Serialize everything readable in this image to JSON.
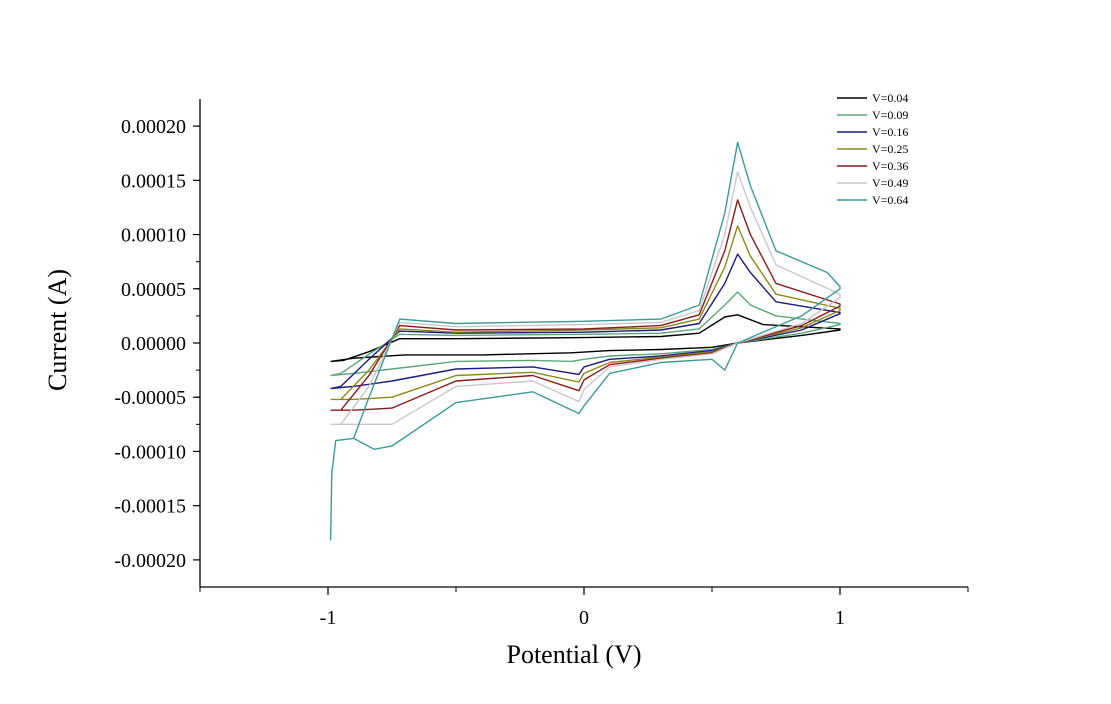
{
  "chart_data": {
    "type": "line",
    "title": "",
    "xlabel": "Potential (V)",
    "ylabel": "Current (A)",
    "xlim": [
      -1.5,
      1.5
    ],
    "ylim": [
      -0.000225,
      0.000225
    ],
    "x_ticks": [
      {
        "value": -1,
        "label": "-1"
      },
      {
        "value": 0,
        "label": "0"
      },
      {
        "value": 1,
        "label": "1"
      }
    ],
    "y_ticks": [
      {
        "value": 0.0002,
        "label": "0.00020"
      },
      {
        "value": 0.00015,
        "label": "0.00015"
      },
      {
        "value": 0.0001,
        "label": "0.00010"
      },
      {
        "value": 5e-05,
        "label": "0.00005"
      },
      {
        "value": 0.0,
        "label": "0.00000"
      },
      {
        "value": -5e-05,
        "label": "-0.00005"
      },
      {
        "value": -0.0001,
        "label": "-0.00010"
      },
      {
        "value": -0.00015,
        "label": "-0.00015"
      },
      {
        "value": -0.0002,
        "label": "-0.00020"
      }
    ],
    "grid": false,
    "legend_position": "top-right",
    "series": [
      {
        "name": "V=0.04",
        "color": "#000000",
        "points": [
          [
            -0.99,
            -1.7e-05
          ],
          [
            -0.94,
            -1.6e-05
          ],
          [
            -0.84,
            -8e-06
          ],
          [
            -0.72,
            4e-06
          ],
          [
            -0.5,
            4e-06
          ],
          [
            0.0,
            5e-06
          ],
          [
            0.3,
            6e-06
          ],
          [
            0.45,
            9e-06
          ],
          [
            0.55,
            2.4e-05
          ],
          [
            0.6,
            2.6e-05
          ],
          [
            0.7,
            1.7e-05
          ],
          [
            1.0,
            1.3e-05
          ],
          [
            1.0,
            1.2e-05
          ],
          [
            0.85,
            7e-06
          ],
          [
            0.6,
            0.0
          ],
          [
            0.5,
            -4e-06
          ],
          [
            0.3,
            -6e-06
          ],
          [
            0.1,
            -7e-06
          ],
          [
            -0.05,
            -9e-06
          ],
          [
            -0.4,
            -1.1e-05
          ],
          [
            -0.7,
            -1.1e-05
          ],
          [
            -0.9,
            -1.4e-05
          ],
          [
            -0.99,
            -1.7e-05
          ]
        ]
      },
      {
        "name": "V=0.09",
        "color": "#5aa779",
        "points": [
          [
            -0.99,
            -3e-05
          ],
          [
            -0.95,
            -2.8e-05
          ],
          [
            -0.85,
            -1.2e-05
          ],
          [
            -0.72,
            8e-06
          ],
          [
            -0.5,
            7e-06
          ],
          [
            0.0,
            8e-06
          ],
          [
            0.3,
            9e-06
          ],
          [
            0.45,
            1.3e-05
          ],
          [
            0.55,
            3.5e-05
          ],
          [
            0.6,
            4.7e-05
          ],
          [
            0.65,
            3.5e-05
          ],
          [
            0.75,
            2.5e-05
          ],
          [
            1.0,
            1.8e-05
          ],
          [
            1.0,
            1.7e-05
          ],
          [
            0.85,
            9e-06
          ],
          [
            0.6,
            0.0
          ],
          [
            0.5,
            -6e-06
          ],
          [
            0.3,
            -1e-05
          ],
          [
            0.1,
            -1.2e-05
          ],
          [
            0.0,
            -1.5e-05
          ],
          [
            -0.05,
            -1.7e-05
          ],
          [
            -0.2,
            -1.6e-05
          ],
          [
            -0.5,
            -1.7e-05
          ],
          [
            -0.75,
            -2.4e-05
          ],
          [
            -0.9,
            -2.8e-05
          ],
          [
            -0.99,
            -3e-05
          ]
        ]
      },
      {
        "name": "V=0.16",
        "color": "#1a1a80",
        "points": [
          [
            -0.99,
            -4.2e-05
          ],
          [
            -0.95,
            -4e-05
          ],
          [
            -0.84,
            -1.5e-05
          ],
          [
            -0.72,
            1.1e-05
          ],
          [
            -0.5,
            9e-06
          ],
          [
            0.0,
            1e-05
          ],
          [
            0.3,
            1.2e-05
          ],
          [
            0.45,
            1.8e-05
          ],
          [
            0.55,
            5.5e-05
          ],
          [
            0.6,
            8.2e-05
          ],
          [
            0.65,
            6.5e-05
          ],
          [
            0.75,
            3.8e-05
          ],
          [
            1.0,
            2.8e-05
          ],
          [
            1.0,
            2.7e-05
          ],
          [
            0.85,
            1.2e-05
          ],
          [
            0.6,
            0.0
          ],
          [
            0.5,
            -7e-06
          ],
          [
            0.3,
            -1.2e-05
          ],
          [
            0.1,
            -1.5e-05
          ],
          [
            0.0,
            -2.2e-05
          ],
          [
            -0.02,
            -2.9e-05
          ],
          [
            -0.2,
            -2.2e-05
          ],
          [
            -0.5,
            -2.4e-05
          ],
          [
            -0.75,
            -3.5e-05
          ],
          [
            -0.9,
            -4e-05
          ],
          [
            -0.99,
            -4.2e-05
          ]
        ]
      },
      {
        "name": "V=0.25",
        "color": "#8a8a1a",
        "points": [
          [
            -0.99,
            -5.2e-05
          ],
          [
            -0.95,
            -5.2e-05
          ],
          [
            -0.84,
            -2.5e-05
          ],
          [
            -0.72,
            1.3e-05
          ],
          [
            -0.5,
            1e-05
          ],
          [
            0.0,
            1.2e-05
          ],
          [
            0.3,
            1.4e-05
          ],
          [
            0.45,
            2.2e-05
          ],
          [
            0.55,
            7e-05
          ],
          [
            0.6,
            0.000108
          ],
          [
            0.65,
            8e-05
          ],
          [
            0.75,
            4.5e-05
          ],
          [
            1.0,
            3.2e-05
          ],
          [
            1.0,
            3e-05
          ],
          [
            0.85,
            1.4e-05
          ],
          [
            0.6,
            0.0
          ],
          [
            0.5,
            -8e-06
          ],
          [
            0.3,
            -1.3e-05
          ],
          [
            0.1,
            -1.8e-05
          ],
          [
            0.0,
            -2.8e-05
          ],
          [
            -0.02,
            -3.6e-05
          ],
          [
            -0.2,
            -2.7e-05
          ],
          [
            -0.5,
            -3e-05
          ],
          [
            -0.75,
            -5e-05
          ],
          [
            -0.9,
            -5.2e-05
          ],
          [
            -0.99,
            -5.2e-05
          ]
        ]
      },
      {
        "name": "V=0.36",
        "color": "#8b1a1a",
        "points": [
          [
            -0.99,
            -6.2e-05
          ],
          [
            -0.95,
            -6.2e-05
          ],
          [
            -0.84,
            -3e-05
          ],
          [
            -0.72,
            1.6e-05
          ],
          [
            -0.5,
            1.2e-05
          ],
          [
            0.0,
            1.3e-05
          ],
          [
            0.3,
            1.6e-05
          ],
          [
            0.45,
            2.6e-05
          ],
          [
            0.55,
            8.5e-05
          ],
          [
            0.6,
            0.000132
          ],
          [
            0.65,
            0.0001
          ],
          [
            0.75,
            5.5e-05
          ],
          [
            1.0,
            3.6e-05
          ],
          [
            1.0,
            3.4e-05
          ],
          [
            0.85,
            1.6e-05
          ],
          [
            0.6,
            0.0
          ],
          [
            0.5,
            -9e-06
          ],
          [
            0.3,
            -1.4e-05
          ],
          [
            0.1,
            -2e-05
          ],
          [
            0.0,
            -3.4e-05
          ],
          [
            -0.02,
            -4.4e-05
          ],
          [
            -0.2,
            -3e-05
          ],
          [
            -0.5,
            -3.5e-05
          ],
          [
            -0.75,
            -6e-05
          ],
          [
            -0.9,
            -6.2e-05
          ],
          [
            -0.99,
            -6.2e-05
          ]
        ]
      },
      {
        "name": "V=0.49",
        "color": "#c8c8c8",
        "points": [
          [
            -0.99,
            -7.5e-05
          ],
          [
            -0.95,
            -7.5e-05
          ],
          [
            -0.84,
            -4e-05
          ],
          [
            -0.72,
            1.9e-05
          ],
          [
            -0.5,
            1.5e-05
          ],
          [
            0.0,
            1.7e-05
          ],
          [
            0.3,
            1.9e-05
          ],
          [
            0.45,
            3e-05
          ],
          [
            0.55,
            0.0001
          ],
          [
            0.6,
            0.000158
          ],
          [
            0.65,
            0.000125
          ],
          [
            0.75,
            7.2e-05
          ],
          [
            1.0,
            4.5e-05
          ],
          [
            1.0,
            4.2e-05
          ],
          [
            0.85,
            1.8e-05
          ],
          [
            0.6,
            0.0
          ],
          [
            0.5,
            -1e-05
          ],
          [
            0.3,
            -1.5e-05
          ],
          [
            0.1,
            -2.2e-05
          ],
          [
            0.0,
            -4.3e-05
          ],
          [
            -0.02,
            -5.4e-05
          ],
          [
            -0.2,
            -3.5e-05
          ],
          [
            -0.5,
            -4e-05
          ],
          [
            -0.75,
            -7.5e-05
          ],
          [
            -0.9,
            -7.5e-05
          ],
          [
            -0.99,
            -7.5e-05
          ]
        ]
      },
      {
        "name": "V=0.64",
        "color": "#3d9999",
        "points": [
          [
            -0.99,
            -0.000182
          ],
          [
            -0.985,
            -0.00012
          ],
          [
            -0.97,
            -9e-05
          ],
          [
            -0.9,
            -8.8e-05
          ],
          [
            -0.84,
            -5e-05
          ],
          [
            -0.72,
            2.2e-05
          ],
          [
            -0.5,
            1.8e-05
          ],
          [
            0.0,
            2e-05
          ],
          [
            0.3,
            2.2e-05
          ],
          [
            0.45,
            3.5e-05
          ],
          [
            0.55,
            0.00012
          ],
          [
            0.6,
            0.000185
          ],
          [
            0.65,
            0.000145
          ],
          [
            0.75,
            8.5e-05
          ],
          [
            0.95,
            6.5e-05
          ],
          [
            1.0,
            5.2e-05
          ],
          [
            1.0,
            5e-05
          ],
          [
            0.85,
            2.5e-05
          ],
          [
            0.6,
            0.0
          ],
          [
            0.55,
            -2.5e-05
          ],
          [
            0.5,
            -1.5e-05
          ],
          [
            0.3,
            -1.8e-05
          ],
          [
            0.1,
            -2.8e-05
          ],
          [
            0.0,
            -5.8e-05
          ],
          [
            -0.02,
            -6.5e-05
          ],
          [
            -0.2,
            -4.5e-05
          ],
          [
            -0.5,
            -5.5e-05
          ],
          [
            -0.75,
            -9.5e-05
          ],
          [
            -0.82,
            -9.8e-05
          ],
          [
            -0.9,
            -8.8e-05
          ]
        ]
      }
    ]
  }
}
